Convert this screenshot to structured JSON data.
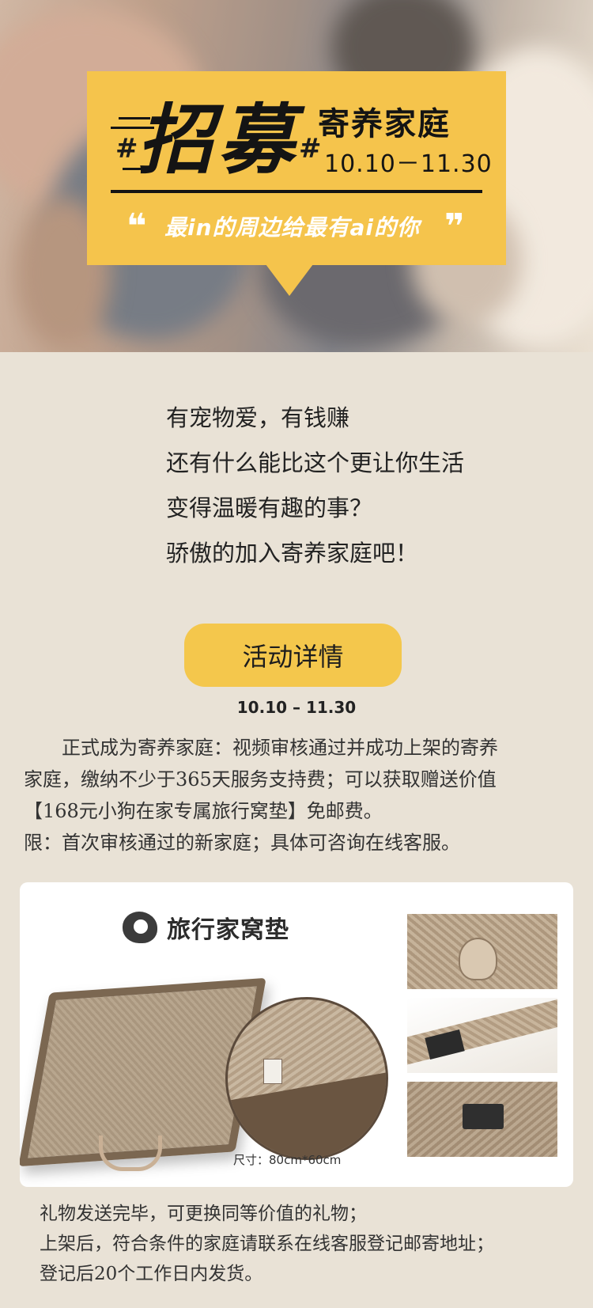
{
  "banner": {
    "hash_left": "#",
    "recruit": "招募",
    "hash_right": "#",
    "title": "寄养家庭",
    "date": "10.10－11.30",
    "quote_open": "❝",
    "slogan": "最in的周边给最有ai的你",
    "quote_close": "❞",
    "accent_color": "#f5c44c"
  },
  "intro": {
    "lines": [
      "有宠物爱，有钱赚",
      "还有什么能比这个更让你生活",
      "变得温暖有趣的事？",
      "骄傲的加入寄养家庭吧！"
    ]
  },
  "cta": {
    "label": "活动详情",
    "color": "#f4c74c"
  },
  "event": {
    "date": "10.10 – 11.30"
  },
  "description": {
    "lines": [
      "正式成为寄养家庭：视频审核通过并成功上架的寄养",
      "家庭，缴纳不少于365天服务支持费；可以获取赠送价值",
      "【168元小狗在家专属旅行窝垫】免邮费。",
      "限：首次审核通过的新家庭；具体可咨询在线客服。"
    ]
  },
  "product": {
    "brand_icon": "brand-logo-icon",
    "brand_name": "旅行家窝垫",
    "size": "尺寸：80cm*60cm"
  },
  "footer": {
    "lines": [
      "礼物发送完毕，可更换同等价值的礼物；",
      "上架后，符合条件的家庭请联系在线客服登记邮寄地址；",
      "登记后20个工作日内发货。"
    ]
  }
}
